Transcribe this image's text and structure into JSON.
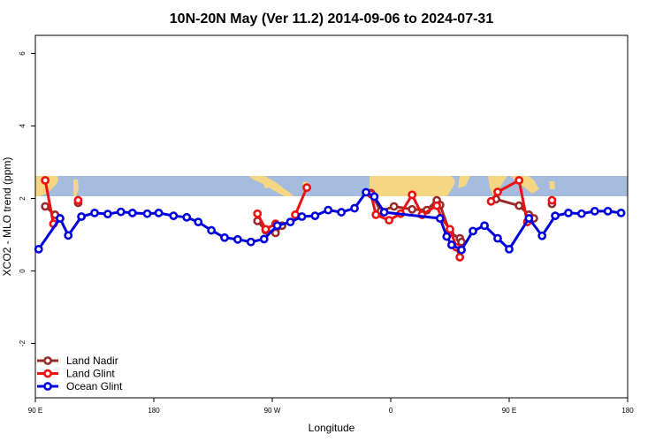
{
  "chart_data": {
    "type": "line",
    "title": "10N-20N May (Ver 11.2)   2014-09-06 to 2024-07-31",
    "xlabel": "Longitude",
    "ylabel": "XCO2 - MLO trend (ppm)",
    "xlim": [
      0,
      360
    ],
    "ylim": [
      -3.5,
      6.5
    ],
    "x_ticks": [
      {
        "value": 0,
        "label": "90 E"
      },
      {
        "value": 72,
        "label": "180"
      },
      {
        "value": 144,
        "label": "90 W"
      },
      {
        "value": 216,
        "label": "0"
      },
      {
        "value": 288,
        "label": "90 E"
      },
      {
        "value": 360,
        "label": "180"
      }
    ],
    "y_ticks": [
      {
        "value": -2,
        "label": "-2"
      },
      {
        "value": 0,
        "label": "0"
      },
      {
        "value": 2,
        "label": "2"
      },
      {
        "value": 4,
        "label": "4"
      },
      {
        "value": 6,
        "label": "6"
      }
    ],
    "map_band": {
      "y_range": [
        2.1,
        2.65
      ],
      "ocean_color": "#a5bcdf",
      "land_color": "#f5d683"
    },
    "legend_position": "bottom-left",
    "series": [
      {
        "name": "Land Nadir",
        "color": "#9b2b2b",
        "segments": [
          [
            [
              6,
              1.78
            ],
            [
              12,
              1.55
            ],
            [
              15,
              1.45
            ]
          ],
          [
            [
              26,
              1.88
            ]
          ],
          [
            [
              135,
              1.38
            ],
            [
              140,
              1.12
            ],
            [
              146,
              1.05
            ],
            [
              150,
              1.25
            ]
          ],
          [
            [
              204,
              2.15
            ],
            [
              210,
              1.65
            ],
            [
              218,
              1.78
            ],
            [
              229,
              1.7
            ],
            [
              238,
              1.68
            ],
            [
              244,
              1.95
            ],
            [
              246,
              1.82
            ],
            [
              252,
              1.05
            ],
            [
              258,
              0.9
            ],
            [
              259,
              0.8
            ]
          ],
          [
            [
              280,
              1.98
            ],
            [
              294,
              1.8
            ],
            [
              300,
              1.55
            ],
            [
              303,
              1.45
            ]
          ],
          [
            [
              314,
              1.85
            ]
          ]
        ]
      },
      {
        "name": "Land Glint",
        "color": "#ee1111",
        "segments": [
          [
            [
              6,
              2.5
            ],
            [
              11,
              1.3
            ]
          ],
          [
            [
              26,
              1.95
            ]
          ],
          [
            [
              135,
              1.58
            ],
            [
              140,
              1.15
            ],
            [
              146,
              1.3
            ]
          ],
          [
            [
              158,
              1.55
            ],
            [
              165,
              2.3
            ]
          ],
          [
            [
              204,
              2.12
            ],
            [
              207,
              1.55
            ],
            [
              215,
              1.4
            ],
            [
              222,
              1.58
            ],
            [
              229,
              2.1
            ],
            [
              235,
              1.55
            ],
            [
              244,
              1.8
            ],
            [
              247,
              1.45
            ],
            [
              252,
              1.15
            ],
            [
              256,
              0.65
            ],
            [
              258,
              0.38
            ]
          ],
          [
            [
              277,
              1.92
            ],
            [
              281,
              2.18
            ],
            [
              294,
              2.5
            ],
            [
              299,
              1.35
            ]
          ],
          [
            [
              314,
              1.95
            ]
          ]
        ]
      },
      {
        "name": "Ocean Glint",
        "color": "#0000dd",
        "segments": [
          [
            [
              2,
              0.6
            ],
            [
              15,
              1.45
            ],
            [
              20,
              0.98
            ],
            [
              28,
              1.5
            ],
            [
              36,
              1.6
            ],
            [
              44,
              1.57
            ],
            [
              52,
              1.63
            ],
            [
              59,
              1.6
            ],
            [
              68,
              1.58
            ],
            [
              75,
              1.6
            ],
            [
              84,
              1.52
            ],
            [
              92,
              1.48
            ],
            [
              99,
              1.35
            ],
            [
              107,
              1.12
            ],
            [
              115,
              0.92
            ],
            [
              123,
              0.87
            ],
            [
              131,
              0.8
            ],
            [
              139,
              0.88
            ],
            [
              147,
              1.25
            ],
            [
              155,
              1.35
            ],
            [
              162,
              1.5
            ],
            [
              170,
              1.52
            ],
            [
              178,
              1.68
            ],
            [
              186,
              1.62
            ],
            [
              194,
              1.73
            ],
            [
              201,
              2.17
            ],
            [
              206,
              2.05
            ],
            [
              212,
              1.62
            ],
            [
              246,
              1.45
            ],
            [
              250,
              0.95
            ],
            [
              253,
              0.72
            ],
            [
              259,
              0.58
            ],
            [
              266,
              1.1
            ],
            [
              273,
              1.25
            ],
            [
              281,
              0.9
            ],
            [
              288,
              0.6
            ],
            [
              300,
              1.45
            ],
            [
              308,
              0.97
            ],
            [
              316,
              1.52
            ],
            [
              324,
              1.6
            ],
            [
              332,
              1.58
            ],
            [
              340,
              1.65
            ],
            [
              348,
              1.65
            ],
            [
              356,
              1.6
            ]
          ]
        ]
      }
    ]
  }
}
